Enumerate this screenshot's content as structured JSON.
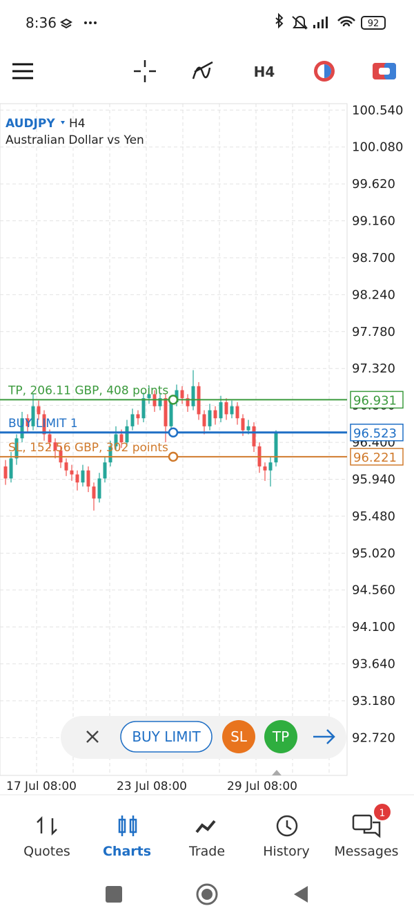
{
  "status_bar": {
    "time": "8:36",
    "battery": "92"
  },
  "toolbar": {
    "timeframe": "H4"
  },
  "chart": {
    "symbol": "AUDJPY",
    "timeframe": "H4",
    "description": "Australian Dollar vs Yen",
    "ylim": [
      92.25,
      100.62
    ],
    "yticks": [
      {
        "value": 100.54,
        "label": "100.540"
      },
      {
        "value": 100.08,
        "label": "100.080"
      },
      {
        "value": 99.62,
        "label": "99.620"
      },
      {
        "value": 99.16,
        "label": "99.160"
      },
      {
        "value": 98.7,
        "label": "98.700"
      },
      {
        "value": 98.24,
        "label": "98.240"
      },
      {
        "value": 97.78,
        "label": "97.780"
      },
      {
        "value": 97.32,
        "label": "97.320"
      },
      {
        "value": 96.86,
        "label": "96.860"
      },
      {
        "value": 96.4,
        "label": "96.400"
      },
      {
        "value": 95.94,
        "label": "95.940"
      },
      {
        "value": 95.48,
        "label": "95.480"
      },
      {
        "value": 95.02,
        "label": "95.020"
      },
      {
        "value": 94.56,
        "label": "94.560"
      },
      {
        "value": 94.1,
        "label": "94.100"
      },
      {
        "value": 93.64,
        "label": "93.640"
      },
      {
        "value": 93.18,
        "label": "93.180"
      },
      {
        "value": 92.72,
        "label": "92.720"
      }
    ],
    "xlabels": [
      "17 Jul 08:00",
      "23 Jul 08:00",
      "29 Jul 08:00"
    ],
    "candles": [
      [
        96.1,
        96.18,
        95.87,
        95.95
      ],
      [
        95.95,
        96.28,
        95.9,
        96.2
      ],
      [
        96.2,
        96.5,
        96.12,
        96.45
      ],
      [
        96.45,
        96.78,
        96.4,
        96.7
      ],
      [
        96.7,
        96.75,
        96.52,
        96.6
      ],
      [
        96.6,
        97.0,
        96.55,
        96.85
      ],
      [
        96.85,
        96.92,
        96.68,
        96.75
      ],
      [
        96.75,
        96.8,
        96.42,
        96.5
      ],
      [
        96.5,
        96.56,
        96.32,
        96.4
      ],
      [
        96.4,
        96.45,
        96.2,
        96.3
      ],
      [
        96.3,
        96.36,
        96.08,
        96.15
      ],
      [
        96.15,
        96.2,
        95.98,
        96.05
      ],
      [
        96.05,
        96.12,
        95.92,
        96.0
      ],
      [
        96.0,
        96.05,
        95.8,
        95.9
      ],
      [
        95.9,
        96.12,
        95.85,
        96.05
      ],
      [
        96.05,
        96.1,
        95.78,
        95.85
      ],
      [
        95.85,
        95.9,
        95.55,
        95.7
      ],
      [
        95.7,
        96.02,
        95.65,
        95.95
      ],
      [
        95.95,
        96.22,
        95.9,
        96.15
      ],
      [
        96.15,
        96.42,
        96.1,
        96.35
      ],
      [
        96.35,
        96.6,
        96.3,
        96.5
      ],
      [
        96.5,
        96.56,
        96.33,
        96.4
      ],
      [
        96.4,
        96.68,
        96.35,
        96.6
      ],
      [
        96.6,
        96.82,
        96.55,
        96.75
      ],
      [
        96.75,
        96.8,
        96.62,
        96.7
      ],
      [
        96.7,
        97.02,
        96.65,
        96.95
      ],
      [
        96.95,
        97.1,
        96.88,
        97.0
      ],
      [
        97.0,
        97.05,
        96.78,
        96.85
      ],
      [
        96.85,
        97.02,
        96.8,
        96.95
      ],
      [
        96.95,
        97.0,
        96.4,
        96.6
      ],
      [
        96.6,
        96.98,
        96.55,
        96.9
      ],
      [
        96.9,
        97.12,
        96.85,
        97.05
      ],
      [
        97.05,
        97.1,
        96.88,
        96.95
      ],
      [
        96.95,
        97.0,
        96.78,
        96.85
      ],
      [
        96.85,
        97.3,
        96.8,
        97.1
      ],
      [
        97.1,
        97.15,
        96.68,
        96.75
      ],
      [
        96.75,
        96.8,
        96.5,
        96.6
      ],
      [
        96.6,
        96.88,
        96.55,
        96.8
      ],
      [
        96.8,
        96.85,
        96.62,
        96.7
      ],
      [
        96.7,
        96.98,
        96.65,
        96.9
      ],
      [
        96.9,
        96.95,
        96.68,
        96.75
      ],
      [
        96.75,
        96.92,
        96.7,
        96.85
      ],
      [
        96.85,
        96.9,
        96.62,
        96.7
      ],
      [
        96.7,
        96.75,
        96.48,
        96.55
      ],
      [
        96.55,
        96.68,
        96.5,
        96.6
      ],
      [
        96.6,
        96.65,
        96.28,
        96.35
      ],
      [
        96.35,
        96.4,
        96.02,
        96.1
      ],
      [
        96.1,
        96.15,
        95.92,
        96.05
      ],
      [
        96.05,
        96.22,
        95.85,
        96.15
      ],
      [
        96.15,
        96.55,
        96.1,
        96.52
      ]
    ],
    "levels": [
      {
        "name": "TP, 206.11 GBP, 408 points",
        "price": 96.931,
        "color": "#3b9a3d"
      },
      {
        "name": "BUY LIMIT 1",
        "price": 96.523,
        "color": "#1f6fc5"
      },
      {
        "name": "SL, 152.56 GBP, 302 points",
        "price": 96.221,
        "color": "#d07a2c"
      }
    ]
  },
  "order_panel": {
    "order_type": "BUY LIMIT",
    "sl": "SL",
    "tp": "TP"
  },
  "nav": {
    "items": [
      "Quotes",
      "Charts",
      "Trade",
      "History",
      "Messages"
    ],
    "badge": "1"
  }
}
